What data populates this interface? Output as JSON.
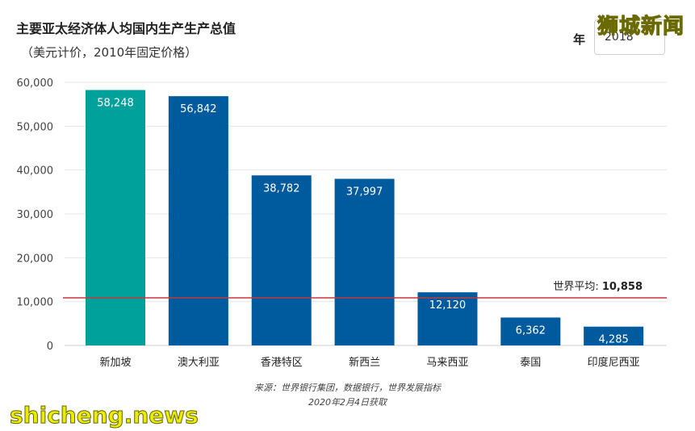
{
  "header": {
    "title": "主要亚太经济体人均国内生产生产总值",
    "subtitle": "（美元计价，2010年固定价格）",
    "year_label": "年",
    "year_value": "2018"
  },
  "watermarks": {
    "top": "狮城新闻",
    "bottom": "shicheng.news"
  },
  "source": {
    "line1": "来源：世界银行集团，数据银行，世界发展指标",
    "line2": "2020年2月4日获取"
  },
  "colors": {
    "highlight": "#00a19a",
    "bar": "#005a9e",
    "average_line": "#c0393b",
    "grid": "#e6e6e6"
  },
  "chart_data": {
    "type": "bar",
    "title": "主要亚太经济体人均国内生产生产总值",
    "subtitle": "（美元计价，2010年固定价格）",
    "categories": [
      "新加坡",
      "澳大利亚",
      "香港特区",
      "新西兰",
      "马来西亚",
      "泰国",
      "印度尼西亚"
    ],
    "values": [
      58248,
      56842,
      38782,
      37997,
      12120,
      6362,
      4285
    ],
    "value_labels": [
      "58,248",
      "56,842",
      "38,782",
      "37,997",
      "12,120",
      "6,362",
      "4,285"
    ],
    "highlight_index": 0,
    "ylim": [
      0,
      60000
    ],
    "yticks": [
      0,
      10000,
      20000,
      30000,
      40000,
      50000,
      60000
    ],
    "ytick_labels": [
      "0",
      "10,000",
      "20,000",
      "30,000",
      "40,000",
      "50,000",
      "60,000"
    ],
    "grid": true,
    "reference_line": {
      "label": "世界平均:",
      "value": 10858,
      "value_label": "10,858"
    }
  }
}
